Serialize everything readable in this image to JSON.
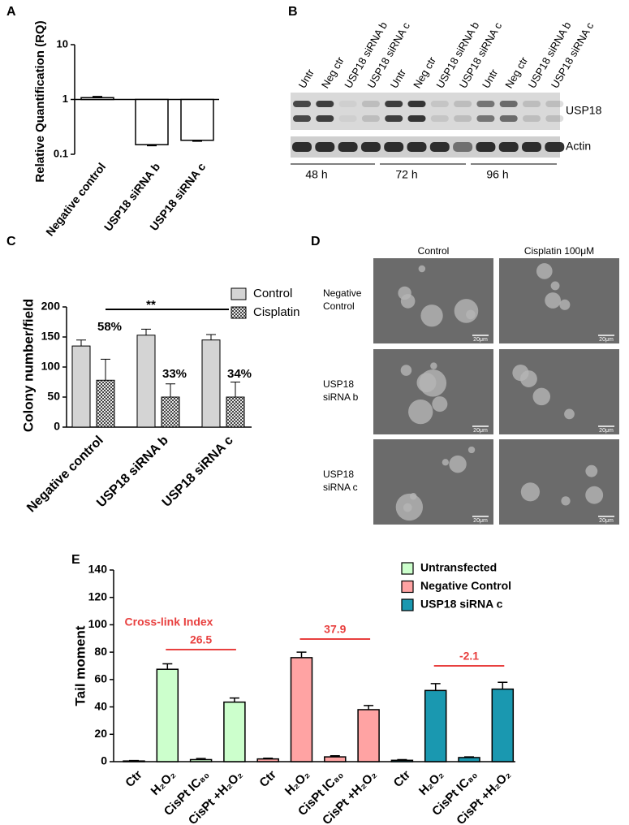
{
  "panels": [
    "A",
    "B",
    "C",
    "D",
    "E"
  ],
  "chart_data": [
    {
      "type": "bar",
      "y_label": "Relative Quantification (RQ)",
      "log_scale": true,
      "categories": [
        "Negative control",
        "USP18 siRNA b",
        "USP18 siRNA c"
      ],
      "values": [
        1.08,
        0.15,
        0.18
      ],
      "errors": [
        0.04,
        0.005,
        0.005
      ],
      "color": "#ffffff",
      "reference_line": 1,
      "ylim": [
        0.1,
        10
      ],
      "yticks": [
        0.1,
        1,
        10
      ]
    },
    {
      "type": "grouped-bar",
      "y_label": "Colony number/field",
      "categories": [
        "Negative control",
        "USP18 siRNA b",
        "USP18 siRNA c"
      ],
      "series": [
        {
          "name": "Control",
          "color": "#d4d4d4",
          "values": [
            135,
            153,
            145
          ],
          "errors": [
            10,
            10,
            9
          ]
        },
        {
          "name": "Cisplatin",
          "color": "#444444",
          "values": [
            78,
            50,
            50
          ],
          "errors": [
            35,
            22,
            25
          ]
        }
      ],
      "annotations": [
        "58%",
        "33%",
        "34%"
      ],
      "significance": "**",
      "ylim": [
        0,
        200
      ],
      "yticks": [
        0,
        50,
        100,
        150,
        200
      ],
      "legend": "top-right"
    },
    {
      "type": "grouped-bar",
      "y_label": "Tail moment",
      "categories": [
        "Ctr",
        "H₂O₂",
        "CisPt IC₈₀",
        "CisPt +H₂O₂",
        "Ctr",
        "H₂O₂",
        "CisPt IC₈₀",
        "CisPt +H₂O₂",
        "Ctr",
        "H₂O₂",
        "CisPt IC₈₀",
        "CisPt +H₂O₂"
      ],
      "series": [
        {
          "name": "Untransfected",
          "color": "#ccffcc",
          "values": [
            0.5,
            67.5,
            1.5,
            43.5,
            null,
            null,
            null,
            null,
            null,
            null,
            null,
            null
          ],
          "errors": [
            0.3,
            4,
            0.8,
            3,
            null,
            null,
            null,
            null,
            null,
            null,
            null,
            null
          ]
        },
        {
          "name": "Negative Control",
          "color": "#ffa3a3",
          "values": [
            null,
            null,
            null,
            null,
            2,
            76,
            3.5,
            38,
            null,
            null,
            null,
            null
          ],
          "errors": [
            null,
            null,
            null,
            null,
            0.5,
            4,
            0.8,
            3,
            null,
            null,
            null,
            null
          ]
        },
        {
          "name": "USP18 siRNA c",
          "color": "#1a98b0",
          "values": [
            null,
            null,
            null,
            null,
            null,
            null,
            null,
            null,
            1,
            52,
            3,
            53
          ],
          "errors": [
            null,
            null,
            null,
            null,
            null,
            null,
            null,
            null,
            0.5,
            5,
            0.5,
            5
          ]
        }
      ],
      "annotation_title": "Cross-link Index",
      "annotations": [
        "26.5",
        "37.9",
        "-2.1"
      ],
      "ylim": [
        0,
        140
      ],
      "yticks": [
        0,
        20,
        40,
        60,
        80,
        100,
        120,
        140
      ],
      "legend": "top-right"
    }
  ],
  "blot": {
    "lanes": [
      "Untr",
      "Neg ctr",
      "USP18 siRNA b",
      "USP18 siRNA c",
      "Untr",
      "Neg ctr",
      "USP18 siRNA b",
      "USP18 siRNA c",
      "Untr",
      "Neg ctr",
      "USP18 siRNA b",
      "USP18 siRNA c"
    ],
    "bands": [
      "USP18",
      "Actin"
    ],
    "times": [
      "48 h",
      "72 h",
      "96 h"
    ]
  },
  "micrographs": {
    "columns": [
      "Control",
      "Cisplatin 100μM"
    ],
    "rows": [
      [
        "Negative",
        "Control"
      ],
      [
        "USP18",
        "siRNA b"
      ],
      [
        "USP18",
        "siRNA c"
      ]
    ],
    "scale_bar": "20μm"
  }
}
